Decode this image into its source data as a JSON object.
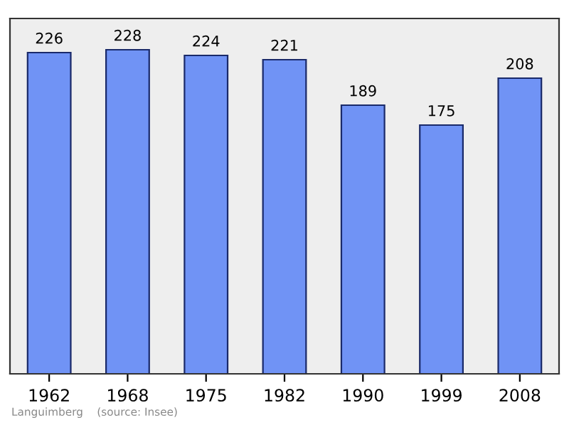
{
  "chart_data": {
    "type": "bar",
    "categories": [
      "1962",
      "1968",
      "1975",
      "1982",
      "1990",
      "1999",
      "2008"
    ],
    "values": [
      226,
      228,
      224,
      221,
      189,
      175,
      208
    ],
    "color": "#7093f5",
    "data_labels": true,
    "ylim": [
      0,
      250
    ],
    "tick_labels": "x",
    "grid": false,
    "annotations": [
      "Languimberg    (source: Insee)"
    ]
  }
}
